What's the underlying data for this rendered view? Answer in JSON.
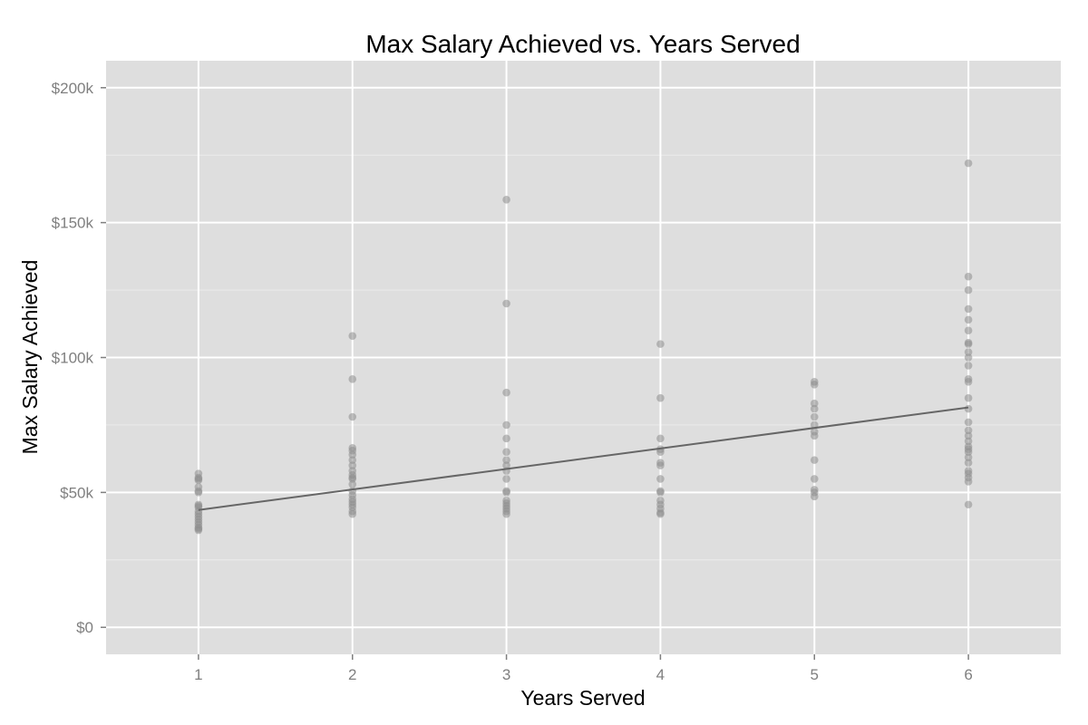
{
  "chart_data": {
    "type": "scatter",
    "title": "Max Salary Achieved vs. Years Served",
    "xlabel": "Years Served",
    "ylabel": "Max Salary Achieved",
    "xlim": [
      0.4,
      6.6
    ],
    "ylim": [
      -10000,
      210000
    ],
    "x_ticks": [
      1,
      2,
      3,
      4,
      5,
      6
    ],
    "x_tick_labels": [
      "1",
      "2",
      "3",
      "4",
      "5",
      "6"
    ],
    "y_ticks": [
      0,
      50000,
      100000,
      150000,
      200000
    ],
    "y_tick_labels": [
      "$0",
      "$50k",
      "$100k",
      "$150k",
      "$200k"
    ],
    "grid": true,
    "legend": "none",
    "colors": {
      "panel": "#dedede",
      "grid_major": "#ffffff",
      "grid_minor": "#ebebeb",
      "point": "#8c8c8c",
      "trend_line": "#666666",
      "tick": "#7f7f7f"
    },
    "points": [
      [
        1,
        57000
      ],
      [
        1,
        55500
      ],
      [
        1,
        55000
      ],
      [
        1,
        54500
      ],
      [
        1,
        52000
      ],
      [
        1,
        50500
      ],
      [
        1,
        50000
      ],
      [
        1,
        45500
      ],
      [
        1,
        45000
      ],
      [
        1,
        44500
      ],
      [
        1,
        43000
      ],
      [
        1,
        42000
      ],
      [
        1,
        41000
      ],
      [
        1,
        40000
      ],
      [
        1,
        39000
      ],
      [
        1,
        38000
      ],
      [
        1,
        37000
      ],
      [
        1,
        36500
      ],
      [
        1,
        36000
      ],
      [
        2,
        108000
      ],
      [
        2,
        92000
      ],
      [
        2,
        78000
      ],
      [
        2,
        66500
      ],
      [
        2,
        65500
      ],
      [
        2,
        64000
      ],
      [
        2,
        62000
      ],
      [
        2,
        60000
      ],
      [
        2,
        58000
      ],
      [
        2,
        56500
      ],
      [
        2,
        55500
      ],
      [
        2,
        55000
      ],
      [
        2,
        53000
      ],
      [
        2,
        50500
      ],
      [
        2,
        49000
      ],
      [
        2,
        47500
      ],
      [
        2,
        46500
      ],
      [
        2,
        45500
      ],
      [
        2,
        44500
      ],
      [
        2,
        43000
      ],
      [
        2,
        42000
      ],
      [
        3,
        158500
      ],
      [
        3,
        120000
      ],
      [
        3,
        87000
      ],
      [
        3,
        75000
      ],
      [
        3,
        70000
      ],
      [
        3,
        65000
      ],
      [
        3,
        62000
      ],
      [
        3,
        60000
      ],
      [
        3,
        58000
      ],
      [
        3,
        55000
      ],
      [
        3,
        50500
      ],
      [
        3,
        50000
      ],
      [
        3,
        47000
      ],
      [
        3,
        46000
      ],
      [
        3,
        45000
      ],
      [
        3,
        44000
      ],
      [
        3,
        43000
      ],
      [
        3,
        42000
      ],
      [
        4,
        105000
      ],
      [
        4,
        85000
      ],
      [
        4,
        70000
      ],
      [
        4,
        66000
      ],
      [
        4,
        65000
      ],
      [
        4,
        61000
      ],
      [
        4,
        60000
      ],
      [
        4,
        55000
      ],
      [
        4,
        50500
      ],
      [
        4,
        50000
      ],
      [
        4,
        47000
      ],
      [
        4,
        45500
      ],
      [
        4,
        44000
      ],
      [
        4,
        42500
      ],
      [
        4,
        42000
      ],
      [
        5,
        91000
      ],
      [
        5,
        90000
      ],
      [
        5,
        83000
      ],
      [
        5,
        81000
      ],
      [
        5,
        78000
      ],
      [
        5,
        75000
      ],
      [
        5,
        72500
      ],
      [
        5,
        71000
      ],
      [
        5,
        62000
      ],
      [
        5,
        55000
      ],
      [
        5,
        51000
      ],
      [
        5,
        50000
      ],
      [
        5,
        48500
      ],
      [
        6,
        172000
      ],
      [
        6,
        130000
      ],
      [
        6,
        125000
      ],
      [
        6,
        118000
      ],
      [
        6,
        114000
      ],
      [
        6,
        110000
      ],
      [
        6,
        105500
      ],
      [
        6,
        105000
      ],
      [
        6,
        102000
      ],
      [
        6,
        100000
      ],
      [
        6,
        97000
      ],
      [
        6,
        92000
      ],
      [
        6,
        91000
      ],
      [
        6,
        85000
      ],
      [
        6,
        81000
      ],
      [
        6,
        76000
      ],
      [
        6,
        73000
      ],
      [
        6,
        71000
      ],
      [
        6,
        69000
      ],
      [
        6,
        67000
      ],
      [
        6,
        66000
      ],
      [
        6,
        65000
      ],
      [
        6,
        63000
      ],
      [
        6,
        61000
      ],
      [
        6,
        58000
      ],
      [
        6,
        57000
      ],
      [
        6,
        55500
      ],
      [
        6,
        54000
      ],
      [
        6,
        45500
      ]
    ],
    "trend_line": {
      "x": [
        1,
        6
      ],
      "y": [
        43500,
        81500
      ]
    }
  }
}
